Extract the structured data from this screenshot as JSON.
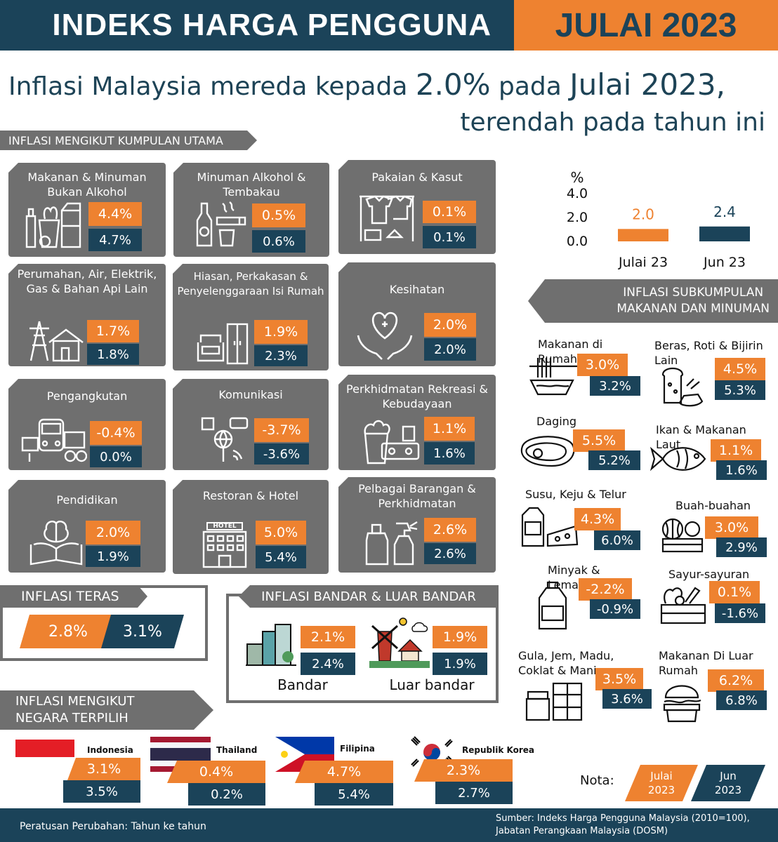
{
  "header": {
    "title": "INDEKS HARGA PENGGUNA",
    "period": "JULAI 2023"
  },
  "headline": {
    "part1": "Inflasi Malaysia mereda kepada ",
    "value": "2.0%",
    "part2": " pada ",
    "month": "Julai 2023",
    "comma": ",",
    "line2": "terendah pada tahun ini"
  },
  "main_groups": {
    "title": "INFLASI MENGIKUT KUMPULAN UTAMA",
    "items": [
      {
        "name": "Makanan & Minuman Bukan Alkohol",
        "jul": "4.4%",
        "jun": "4.7%"
      },
      {
        "name": "Minuman Alkohol & Tembakau",
        "jul": "0.5%",
        "jun": "0.6%"
      },
      {
        "name": "Pakaian & Kasut",
        "jul": "0.1%",
        "jun": "0.1%"
      },
      {
        "name": "Perumahan, Air, Elektrik, Gas & Bahan Api Lain",
        "jul": "1.7%",
        "jun": "1.8%"
      },
      {
        "name": "Hiasan, Perkakasan & Penyelenggaraan Isi Rumah",
        "jul": "1.9%",
        "jun": "2.3%"
      },
      {
        "name": "Kesihatan",
        "jul": "2.0%",
        "jun": "2.0%"
      },
      {
        "name": "Pengangkutan",
        "jul": "-0.4%",
        "jun": "0.0%"
      },
      {
        "name": "Komunikasi",
        "jul": "-3.7%",
        "jun": "-3.6%"
      },
      {
        "name": "Perkhidmatan Rekreasi & Kebudayaan",
        "jul": "1.1%",
        "jun": "1.6%"
      },
      {
        "name": "Pendidikan",
        "jul": "2.0%",
        "jun": "1.9%"
      },
      {
        "name": "Restoran & Hotel",
        "jul": "5.0%",
        "jun": "5.4%"
      },
      {
        "name": "Pelbagai Barangan & Perkhidmatan",
        "jul": "2.6%",
        "jun": "2.6%"
      }
    ]
  },
  "icon_text": {
    "hotel": "HOTEL"
  },
  "chart_data": {
    "type": "bar",
    "ylabel": "%",
    "yticks": [
      "4.0",
      "2.0",
      "0.0"
    ],
    "ylim": [
      0,
      4
    ],
    "categories": [
      "Julai 23",
      "Jun 23"
    ],
    "values": [
      2.0,
      2.4
    ],
    "value_labels": [
      "2.0",
      "2.4"
    ],
    "colors": [
      "#ee8230",
      "#1b4359"
    ]
  },
  "food_sub": {
    "title_line1": "INFLASI SUBKUMPULAN",
    "title_line2": "MAKANAN DAN MINUMAN",
    "items": [
      {
        "name": "Makanan di Rumah",
        "jul": "3.0%",
        "jun": "3.2%"
      },
      {
        "name": "Beras, Roti & Bijirin Lain",
        "jul": "4.5%",
        "jun": "5.3%"
      },
      {
        "name": "Daging",
        "jul": "5.5%",
        "jun": "5.2%"
      },
      {
        "name": "Ikan & Makanan Laut",
        "jul": "1.1%",
        "jun": "1.6%"
      },
      {
        "name": "Susu, Keju & Telur",
        "jul": "4.3%",
        "jun": "6.0%"
      },
      {
        "name": "Buah-buahan",
        "jul": "3.0%",
        "jun": "2.9%"
      },
      {
        "name": "Minyak & Lemak",
        "jul": "-2.2%",
        "jun": "-0.9%"
      },
      {
        "name": "Sayur-sayuran",
        "jul": "0.1%",
        "jun": "-1.6%"
      },
      {
        "name": "Gula, Jem, Madu, Coklat & Manisan",
        "jul": "3.5%",
        "jun": "3.6%"
      },
      {
        "name": "Makanan Di Luar Rumah",
        "jul": "6.2%",
        "jun": "6.8%"
      }
    ]
  },
  "core": {
    "title": "INFLASI TERAS",
    "jul": "2.8%",
    "jun": "3.1%"
  },
  "urban": {
    "title": "INFLASI BANDAR & LUAR BANDAR",
    "bandar": {
      "label": "Bandar",
      "jul": "2.1%",
      "jun": "2.4%"
    },
    "luar": {
      "label": "Luar bandar",
      "jul": "1.9%",
      "jun": "1.9%"
    }
  },
  "countries": {
    "title_line1": "INFLASI MENGIKUT",
    "title_line2": "NEGARA TERPILIH",
    "items": [
      {
        "name": "Indonesia",
        "jul": "3.1%",
        "jun": "3.5%"
      },
      {
        "name": "Thailand",
        "jul": "0.4%",
        "jun": "0.2%"
      },
      {
        "name": "Filipina",
        "jul": "4.7%",
        "jun": "5.4%"
      },
      {
        "name": "Republik Korea",
        "jul": "2.3%",
        "jun": "2.7%"
      }
    ]
  },
  "note": {
    "label": "Nota:",
    "jul_line1": "Julai",
    "jul_line2": "2023",
    "jun_line1": "Jun",
    "jun_line2": "2023"
  },
  "footer": {
    "left": "Peratusan Perubahan: Tahun ke tahun",
    "right_line1": "Sumber: Indeks Harga Pengguna Malaysia (2010=100),",
    "right_line2": "Jabatan Perangkaan Malaysia (DOSM)"
  },
  "colors": {
    "orange": "#ee8230",
    "navy": "#1b4359",
    "grey": "#6f6f6f"
  }
}
